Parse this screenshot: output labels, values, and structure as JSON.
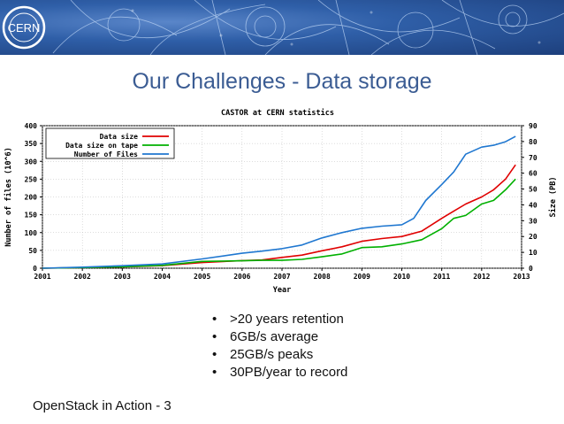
{
  "slide": {
    "title": "Our Challenges - Data storage",
    "logo_text": "CERN",
    "bullets": [
      ">20 years retention",
      "6GB/s average",
      "25GB/s peaks",
      "30PB/year to record"
    ],
    "footer": "OpenStack in Action - 3"
  },
  "chart_data": {
    "type": "line",
    "title": "CASTOR at CERN statistics",
    "xlabel": "Year",
    "ylabel": "Number of files (10^6)",
    "y2label": "Size (PB)",
    "x_ticks": [
      "2001",
      "2002",
      "2003",
      "2004",
      "2005",
      "2006",
      "2007",
      "2008",
      "2009",
      "2010",
      "2011",
      "2012",
      "2013"
    ],
    "xlim": [
      2001,
      2013
    ],
    "ylim": [
      0,
      400
    ],
    "y_ticks": [
      "0",
      "50",
      "100",
      "150",
      "200",
      "250",
      "300",
      "350",
      "400"
    ],
    "y2lim": [
      0,
      90
    ],
    "y2_ticks": [
      "0",
      "10",
      "20",
      "30",
      "40",
      "50",
      "60",
      "70",
      "80",
      "90"
    ],
    "legend_position": "top-left",
    "grid": true,
    "series": [
      {
        "name": "Data size",
        "color": "#e00000",
        "axis": "right",
        "x": [
          2001,
          2002,
          2003,
          2004,
          2005,
          2006,
          2006.5,
          2007,
          2007.5,
          2008,
          2008.5,
          2009,
          2009.5,
          2010,
          2010.5,
          2011,
          2011.3,
          2011.6,
          2012,
          2012.3,
          2012.6,
          2012.85
        ],
        "y": [
          0,
          0.4,
          0.8,
          1.6,
          3.6,
          4.8,
          5.2,
          6.8,
          8.3,
          11,
          13.5,
          17,
          18.7,
          20,
          23.4,
          31.5,
          36,
          40.5,
          45,
          49.5,
          56.3,
          65.3
        ]
      },
      {
        "name": "Data size on tape",
        "color": "#00b000",
        "axis": "right",
        "x": [
          2001,
          2002,
          2003,
          2004,
          2005,
          2006,
          2006.5,
          2007,
          2007.5,
          2008,
          2008.5,
          2009,
          2009.5,
          2010,
          2010.5,
          2011,
          2011.3,
          2011.6,
          2012,
          2012.3,
          2012.6,
          2012.85
        ],
        "y": [
          0,
          0.4,
          0.9,
          1.8,
          4.3,
          4.7,
          5,
          5,
          5.6,
          7.2,
          9,
          13,
          13.5,
          15.3,
          18,
          25,
          31.5,
          33.3,
          40.5,
          42.8,
          49.5,
          56.3
        ]
      },
      {
        "name": "Number of Files",
        "color": "#1f77d0",
        "axis": "left",
        "x": [
          2001,
          2002,
          2003,
          2004,
          2005,
          2006,
          2006.5,
          2007,
          2007.5,
          2008,
          2008.5,
          2009,
          2009.5,
          2010,
          2010.3,
          2010.6,
          2011,
          2011.3,
          2011.6,
          2012,
          2012.3,
          2012.6,
          2012.85
        ],
        "y": [
          0,
          3,
          7,
          12,
          26,
          42,
          48,
          55,
          65,
          85,
          100,
          112,
          118,
          122,
          140,
          190,
          235,
          270,
          320,
          340,
          345,
          355,
          370
        ]
      }
    ]
  }
}
